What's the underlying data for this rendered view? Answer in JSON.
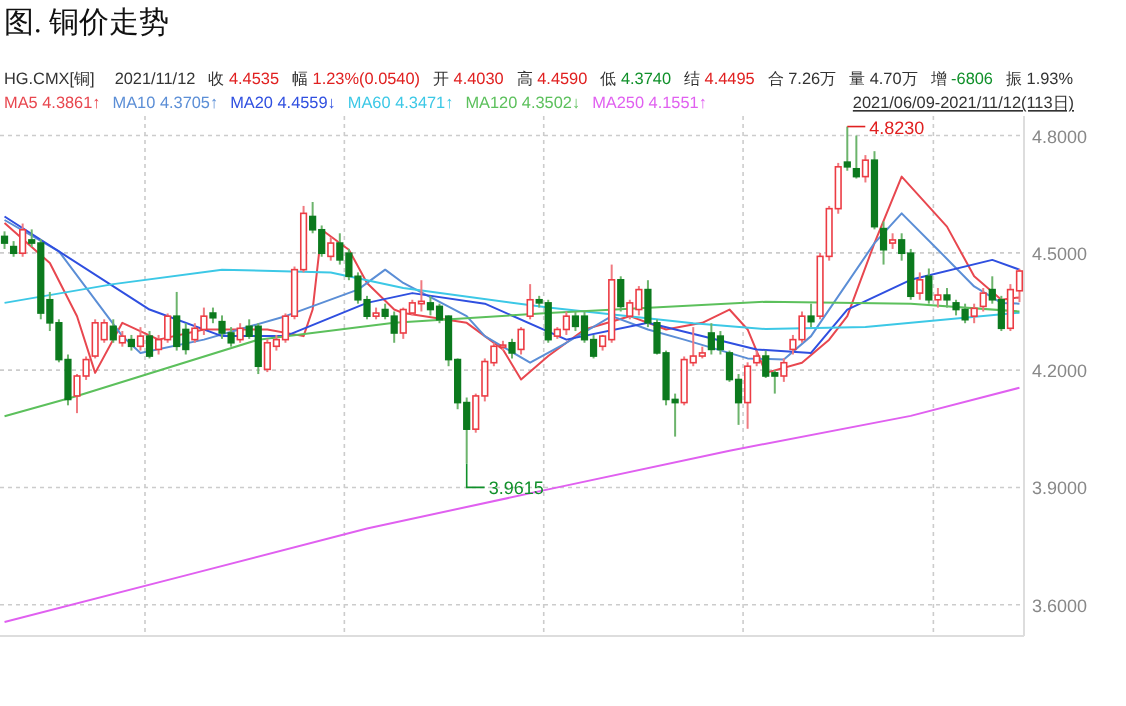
{
  "chart_data": {
    "type": "candlestick",
    "title": "图. 铜价走势",
    "tick_labels": "y",
    "grid": true,
    "ylim": [
      3.52,
      4.85
    ],
    "yticks": [
      {
        "value": 3.6,
        "label": "3.6000"
      },
      {
        "value": 3.9,
        "label": "3.9000"
      },
      {
        "value": 4.2,
        "label": "4.2000"
      },
      {
        "value": 4.5,
        "label": "4.5000"
      },
      {
        "value": 4.8,
        "label": "4.8000"
      }
    ],
    "categories": [
      null,
      null,
      null,
      null,
      null,
      null,
      null,
      null,
      null,
      null,
      null,
      null,
      null,
      null,
      null,
      null,
      null,
      null,
      null,
      null,
      null,
      null,
      null,
      null,
      null,
      null,
      null,
      null,
      null,
      null,
      null,
      null,
      null,
      null,
      null,
      null,
      null,
      null,
      null,
      null,
      null,
      null,
      null,
      null,
      null,
      null,
      null,
      null,
      null,
      null,
      null,
      null,
      null,
      null,
      null,
      null,
      null,
      null,
      null,
      null,
      null,
      null,
      null,
      null,
      null,
      null,
      null,
      null,
      null,
      null,
      null,
      null,
      null,
      null,
      null,
      null,
      null,
      null,
      null,
      null,
      null,
      null,
      null,
      null,
      null,
      null,
      null,
      null,
      null,
      null,
      null,
      null,
      null,
      null,
      null,
      null,
      null,
      null,
      null,
      null,
      null,
      null,
      null,
      null,
      null,
      null,
      null,
      null,
      null,
      null,
      null,
      null,
      null
    ],
    "ohlc": [
      [
        4.542,
        4.555,
        4.51,
        4.525
      ],
      [
        4.516,
        4.53,
        4.49,
        4.499
      ],
      [
        4.499,
        4.575,
        4.49,
        4.559
      ],
      [
        4.533,
        4.56,
        4.515,
        4.525
      ],
      [
        4.525,
        4.535,
        4.33,
        4.346
      ],
      [
        4.38,
        4.4,
        4.3,
        4.321
      ],
      [
        4.321,
        4.33,
        4.22,
        4.227
      ],
      [
        4.227,
        4.24,
        4.11,
        4.125
      ],
      [
        4.134,
        4.19,
        4.09,
        4.185
      ],
      [
        4.185,
        4.235,
        4.175,
        4.227
      ],
      [
        4.236,
        4.33,
        4.23,
        4.321
      ],
      [
        4.278,
        4.33,
        4.27,
        4.321
      ],
      [
        4.312,
        4.33,
        4.27,
        4.278
      ],
      [
        4.27,
        4.3,
        4.26,
        4.287
      ],
      [
        4.278,
        4.29,
        4.25,
        4.261
      ],
      [
        4.261,
        4.31,
        4.25,
        4.287
      ],
      [
        4.287,
        4.3,
        4.23,
        4.236
      ],
      [
        4.253,
        4.29,
        4.24,
        4.278
      ],
      [
        4.278,
        4.345,
        4.27,
        4.338
      ],
      [
        4.338,
        4.4,
        4.25,
        4.261
      ],
      [
        4.304,
        4.32,
        4.24,
        4.253
      ],
      [
        4.278,
        4.32,
        4.27,
        4.307
      ],
      [
        4.304,
        4.36,
        4.29,
        4.338
      ],
      [
        4.346,
        4.36,
        4.32,
        4.334
      ],
      [
        4.324,
        4.34,
        4.28,
        4.295
      ],
      [
        4.295,
        4.31,
        4.26,
        4.27
      ],
      [
        4.278,
        4.32,
        4.27,
        4.307
      ],
      [
        4.312,
        4.33,
        4.28,
        4.287
      ],
      [
        4.312,
        4.32,
        4.19,
        4.21
      ],
      [
        4.202,
        4.28,
        4.195,
        4.27
      ],
      [
        4.261,
        4.29,
        4.25,
        4.278
      ],
      [
        4.278,
        4.345,
        4.27,
        4.338
      ],
      [
        4.338,
        4.465,
        4.33,
        4.457
      ],
      [
        4.457,
        4.62,
        4.45,
        4.601
      ],
      [
        4.593,
        4.63,
        4.55,
        4.559
      ],
      [
        4.559,
        4.57,
        4.49,
        4.499
      ],
      [
        4.491,
        4.54,
        4.48,
        4.525
      ],
      [
        4.525,
        4.55,
        4.47,
        4.482
      ],
      [
        4.499,
        4.51,
        4.43,
        4.44
      ],
      [
        4.44,
        4.45,
        4.37,
        4.38
      ],
      [
        4.38,
        4.39,
        4.33,
        4.338
      ],
      [
        4.338,
        4.36,
        4.33,
        4.346
      ],
      [
        4.355,
        4.37,
        4.33,
        4.338
      ],
      [
        4.338,
        4.35,
        4.27,
        4.295
      ],
      [
        4.295,
        4.36,
        4.28,
        4.355
      ],
      [
        4.346,
        4.38,
        4.34,
        4.372
      ],
      [
        4.37,
        4.43,
        4.35,
        4.376
      ],
      [
        4.372,
        4.39,
        4.34,
        4.355
      ],
      [
        4.363,
        4.37,
        4.32,
        4.329
      ],
      [
        4.338,
        4.34,
        4.21,
        4.227
      ],
      [
        4.227,
        4.23,
        4.1,
        4.117
      ],
      [
        4.117,
        4.13,
        3.9615,
        4.049
      ],
      [
        4.049,
        4.14,
        4.04,
        4.134
      ],
      [
        4.134,
        4.23,
        4.12,
        4.222
      ],
      [
        4.219,
        4.27,
        4.21,
        4.261
      ],
      [
        4.259,
        4.275,
        4.25,
        4.264
      ],
      [
        4.27,
        4.28,
        4.23,
        4.244
      ],
      [
        4.253,
        4.31,
        4.24,
        4.304
      ],
      [
        4.338,
        4.42,
        4.33,
        4.38
      ],
      [
        4.38,
        4.39,
        4.36,
        4.372
      ],
      [
        4.372,
        4.38,
        4.27,
        4.278
      ],
      [
        4.287,
        4.31,
        4.28,
        4.304
      ],
      [
        4.304,
        4.35,
        4.29,
        4.338
      ],
      [
        4.338,
        4.35,
        4.3,
        4.312
      ],
      [
        4.338,
        4.35,
        4.27,
        4.278
      ],
      [
        4.278,
        4.29,
        4.23,
        4.236
      ],
      [
        4.261,
        4.29,
        4.25,
        4.287
      ],
      [
        4.278,
        4.47,
        4.27,
        4.431
      ],
      [
        4.431,
        4.44,
        4.35,
        4.363
      ],
      [
        4.338,
        4.38,
        4.33,
        4.372
      ],
      [
        4.355,
        4.415,
        4.34,
        4.406
      ],
      [
        4.406,
        4.43,
        4.31,
        4.321
      ],
      [
        4.321,
        4.33,
        4.24,
        4.244
      ],
      [
        4.244,
        4.25,
        4.11,
        4.125
      ],
      [
        4.125,
        4.14,
        4.03,
        4.117
      ],
      [
        4.117,
        4.235,
        4.11,
        4.227
      ],
      [
        4.219,
        4.31,
        4.21,
        4.236
      ],
      [
        4.236,
        4.26,
        4.23,
        4.244
      ],
      [
        4.295,
        4.32,
        4.24,
        4.253
      ],
      [
        4.287,
        4.3,
        4.24,
        4.253
      ],
      [
        4.244,
        4.25,
        4.17,
        4.176
      ],
      [
        4.176,
        4.19,
        4.06,
        4.117
      ],
      [
        4.117,
        4.22,
        4.05,
        4.21
      ],
      [
        4.219,
        4.25,
        4.21,
        4.236
      ],
      [
        4.236,
        4.25,
        4.18,
        4.185
      ],
      [
        4.193,
        4.2,
        4.14,
        4.185
      ],
      [
        4.185,
        4.23,
        4.17,
        4.219
      ],
      [
        4.253,
        4.29,
        4.24,
        4.278
      ],
      [
        4.278,
        4.35,
        4.27,
        4.338
      ],
      [
        4.338,
        4.37,
        4.31,
        4.324
      ],
      [
        4.338,
        4.5,
        4.33,
        4.491
      ],
      [
        4.491,
        4.62,
        4.48,
        4.613
      ],
      [
        4.613,
        4.73,
        4.6,
        4.72
      ],
      [
        4.732,
        4.823,
        4.71,
        4.72
      ],
      [
        4.715,
        4.8,
        4.69,
        4.695
      ],
      [
        4.695,
        4.75,
        4.68,
        4.737
      ],
      [
        4.737,
        4.76,
        4.56,
        4.567
      ],
      [
        4.562,
        4.58,
        4.47,
        4.508
      ],
      [
        4.525,
        4.55,
        4.51,
        4.533
      ],
      [
        4.533,
        4.55,
        4.48,
        4.499
      ],
      [
        4.499,
        4.51,
        4.38,
        4.389
      ],
      [
        4.397,
        4.45,
        4.38,
        4.431
      ],
      [
        4.44,
        4.46,
        4.37,
        4.38
      ],
      [
        4.38,
        4.41,
        4.36,
        4.392
      ],
      [
        4.392,
        4.41,
        4.36,
        4.38
      ],
      [
        4.372,
        4.38,
        4.34,
        4.355
      ],
      [
        4.355,
        4.37,
        4.32,
        4.329
      ],
      [
        4.338,
        4.37,
        4.32,
        4.358
      ],
      [
        4.363,
        4.41,
        4.35,
        4.397
      ],
      [
        4.406,
        4.44,
        4.37,
        4.38
      ],
      [
        4.38,
        4.39,
        4.3,
        4.307
      ],
      [
        4.307,
        4.42,
        4.3,
        4.406
      ],
      [
        4.403,
        4.459,
        4.374,
        4.4535
      ]
    ],
    "series": [
      {
        "name": "MA5",
        "type": "line",
        "color": "#e8474f",
        "values": [
          4.576,
          null,
          null,
          null,
          null,
          4.474,
          null,
          null,
          4.338,
          null,
          4.193,
          null,
          null,
          4.321,
          null,
          null,
          null,
          4.278,
          null,
          null,
          null,
          null,
          4.304,
          null,
          null,
          null,
          null,
          null,
          null,
          4.304,
          null,
          null,
          null,
          4.287,
          4.355,
          4.559,
          null,
          null,
          4.508,
          null,
          4.423,
          null,
          null,
          4.355,
          4.346,
          null,
          null,
          null,
          null,
          null,
          null,
          4.321,
          null,
          4.287,
          null,
          4.253,
          null,
          4.176,
          null,
          null,
          4.236,
          null,
          null,
          null,
          4.304,
          null,
          null,
          null,
          null,
          4.338,
          null,
          null,
          null,
          4.304,
          null,
          null,
          null,
          4.321,
          null,
          null,
          4.355,
          null,
          4.304,
          null,
          4.193,
          null,
          null,
          null,
          4.219,
          null,
          null,
          4.278,
          null,
          4.338,
          null,
          null,
          4.525,
          null,
          null,
          4.695,
          null,
          null,
          null,
          null,
          4.567,
          null,
          null,
          4.44,
          null,
          null,
          4.38,
          null,
          4.386
        ]
      },
      {
        "name": "MA10",
        "type": "line",
        "color": "#5b8ed6",
        "values": [
          4.584,
          null,
          null,
          null,
          null,
          null,
          4.504,
          null,
          null,
          null,
          null,
          null,
          null,
          4.287,
          null,
          4.244,
          null,
          null,
          null,
          null,
          null,
          null,
          4.278,
          null,
          null,
          null,
          null,
          null,
          null,
          null,
          null,
          4.338,
          null,
          null,
          null,
          null,
          null,
          null,
          null,
          4.406,
          null,
          null,
          4.457,
          null,
          4.423,
          null,
          null,
          null,
          null,
          null,
          null,
          4.338,
          null,
          4.287,
          null,
          null,
          null,
          null,
          4.219,
          null,
          null,
          null,
          4.27,
          null,
          null,
          null,
          null,
          4.338,
          null,
          null,
          null,
          4.304,
          null,
          null,
          null,
          4.278,
          null,
          null,
          null,
          null,
          null,
          null,
          4.23,
          null,
          null,
          null,
          4.227,
          null,
          null,
          4.287,
          null,
          null,
          null,
          null,
          null,
          null,
          4.525,
          null,
          null,
          4.601,
          null,
          null,
          null,
          4.508,
          null,
          null,
          null,
          4.414,
          null,
          null,
          4.372,
          null,
          4.37
        ]
      },
      {
        "name": "MA20",
        "type": "line",
        "color": "#2f4fe0",
        "values": [
          4.593,
          null,
          null,
          null,
          null,
          null,
          null,
          null,
          null,
          null,
          null,
          null,
          null,
          null,
          null,
          null,
          4.355,
          null,
          null,
          null,
          null,
          null,
          null,
          null,
          4.287,
          null,
          null,
          null,
          null,
          null,
          null,
          4.287,
          null,
          null,
          null,
          null,
          null,
          null,
          null,
          null,
          4.372,
          null,
          null,
          null,
          null,
          4.397,
          null,
          null,
          null,
          null,
          null,
          null,
          null,
          4.37,
          null,
          null,
          null,
          null,
          null,
          null,
          null,
          null,
          4.278,
          null,
          null,
          null,
          null,
          null,
          null,
          null,
          null,
          4.321,
          null,
          null,
          null,
          null,
          null,
          null,
          null,
          null,
          null,
          null,
          null,
          4.253,
          null,
          null,
          null,
          null,
          null,
          4.244,
          null,
          null,
          null,
          4.355,
          null,
          null,
          null,
          null,
          null,
          null,
          4.431,
          null,
          null,
          null,
          null,
          null,
          null,
          null,
          null,
          4.482,
          null,
          null,
          4.457
        ]
      },
      {
        "name": "MA60",
        "type": "line",
        "color": "#3cc8e6",
        "values": [
          4.372,
          null,
          null,
          null,
          null,
          null,
          null,
          null,
          null,
          null,
          null,
          null,
          4.42,
          null,
          null,
          null,
          null,
          null,
          null,
          null,
          null,
          null,
          null,
          null,
          4.457,
          null,
          null,
          null,
          null,
          null,
          null,
          null,
          null,
          null,
          null,
          null,
          4.45,
          null,
          null,
          null,
          null,
          null,
          null,
          null,
          4.41,
          null,
          null,
          null,
          null,
          null,
          null,
          null,
          null,
          null,
          null,
          null,
          null,
          null,
          null,
          null,
          4.36,
          null,
          null,
          null,
          null,
          null,
          null,
          null,
          null,
          null,
          null,
          null,
          null,
          null,
          null,
          null,
          4.32,
          null,
          null,
          null,
          null,
          null,
          null,
          null,
          4.305,
          null,
          null,
          null,
          null,
          null,
          null,
          null,
          null,
          null,
          null,
          4.31,
          null,
          null,
          null,
          null,
          null,
          null,
          null,
          null,
          null,
          null,
          null,
          null,
          null,
          null,
          null,
          null,
          4.347
        ]
      },
      {
        "name": "MA120",
        "type": "line",
        "color": "#5cc05c",
        "values": [
          4.082,
          null,
          null,
          null,
          null,
          null,
          null,
          null,
          4.134,
          null,
          null,
          null,
          null,
          null,
          null,
          null,
          null,
          null,
          null,
          null,
          null,
          null,
          null,
          null,
          null,
          null,
          null,
          null,
          4.278,
          null,
          null,
          null,
          null,
          null,
          null,
          null,
          null,
          null,
          null,
          null,
          null,
          null,
          null,
          4.321,
          null,
          null,
          null,
          null,
          null,
          null,
          null,
          null,
          null,
          null,
          null,
          null,
          null,
          null,
          null,
          null,
          4.346,
          null,
          null,
          null,
          null,
          null,
          null,
          null,
          null,
          null,
          null,
          null,
          null,
          null,
          null,
          null,
          null,
          null,
          null,
          null,
          null,
          null,
          null,
          null,
          4.375,
          null,
          null,
          null,
          null,
          null,
          null,
          null,
          null,
          null,
          null,
          null,
          null,
          null,
          null,
          null,
          4.37,
          null,
          null,
          null,
          null,
          null,
          null,
          null,
          null,
          null,
          null,
          null,
          4.35
        ]
      },
      {
        "name": "MA250",
        "type": "line",
        "color": "#e060f0",
        "values": [
          3.556,
          null,
          null,
          null,
          null,
          null,
          null,
          null,
          null,
          null,
          null,
          null,
          null,
          null,
          null,
          null,
          null,
          null,
          null,
          null,
          3.675,
          null,
          null,
          null,
          null,
          null,
          null,
          null,
          null,
          null,
          null,
          null,
          null,
          null,
          null,
          null,
          null,
          null,
          null,
          null,
          3.795,
          null,
          null,
          null,
          null,
          null,
          null,
          null,
          null,
          null,
          null,
          null,
          null,
          null,
          null,
          null,
          null,
          null,
          null,
          null,
          3.895,
          null,
          null,
          null,
          null,
          null,
          null,
          null,
          null,
          null,
          null,
          null,
          null,
          null,
          null,
          null,
          null,
          null,
          null,
          null,
          3.994,
          null,
          null,
          null,
          null,
          null,
          null,
          null,
          null,
          null,
          null,
          null,
          null,
          null,
          null,
          null,
          null,
          null,
          null,
          null,
          4.083,
          null,
          null,
          null,
          null,
          null,
          null,
          null,
          null,
          null,
          null,
          null,
          4.155
        ]
      }
    ],
    "annotations": [
      "HG.CMX[铜]",
      "2021/11/12",
      "收 4.4535",
      "幅 1.23%(0.0540)",
      "开 4.4030",
      "高 4.4590",
      "低 4.3740",
      "结 4.4495",
      "合 7.26万",
      "量 4.70万",
      "增 -6806",
      "振 1.93%",
      "4.3861↑",
      "4.3705↑",
      "4.4559↓",
      "4.3471↑",
      "4.3502↓",
      "4.1551↑",
      "2021/06/09-2021/11/12(113日)",
      "4.8230",
      "3.9615"
    ]
  }
}
